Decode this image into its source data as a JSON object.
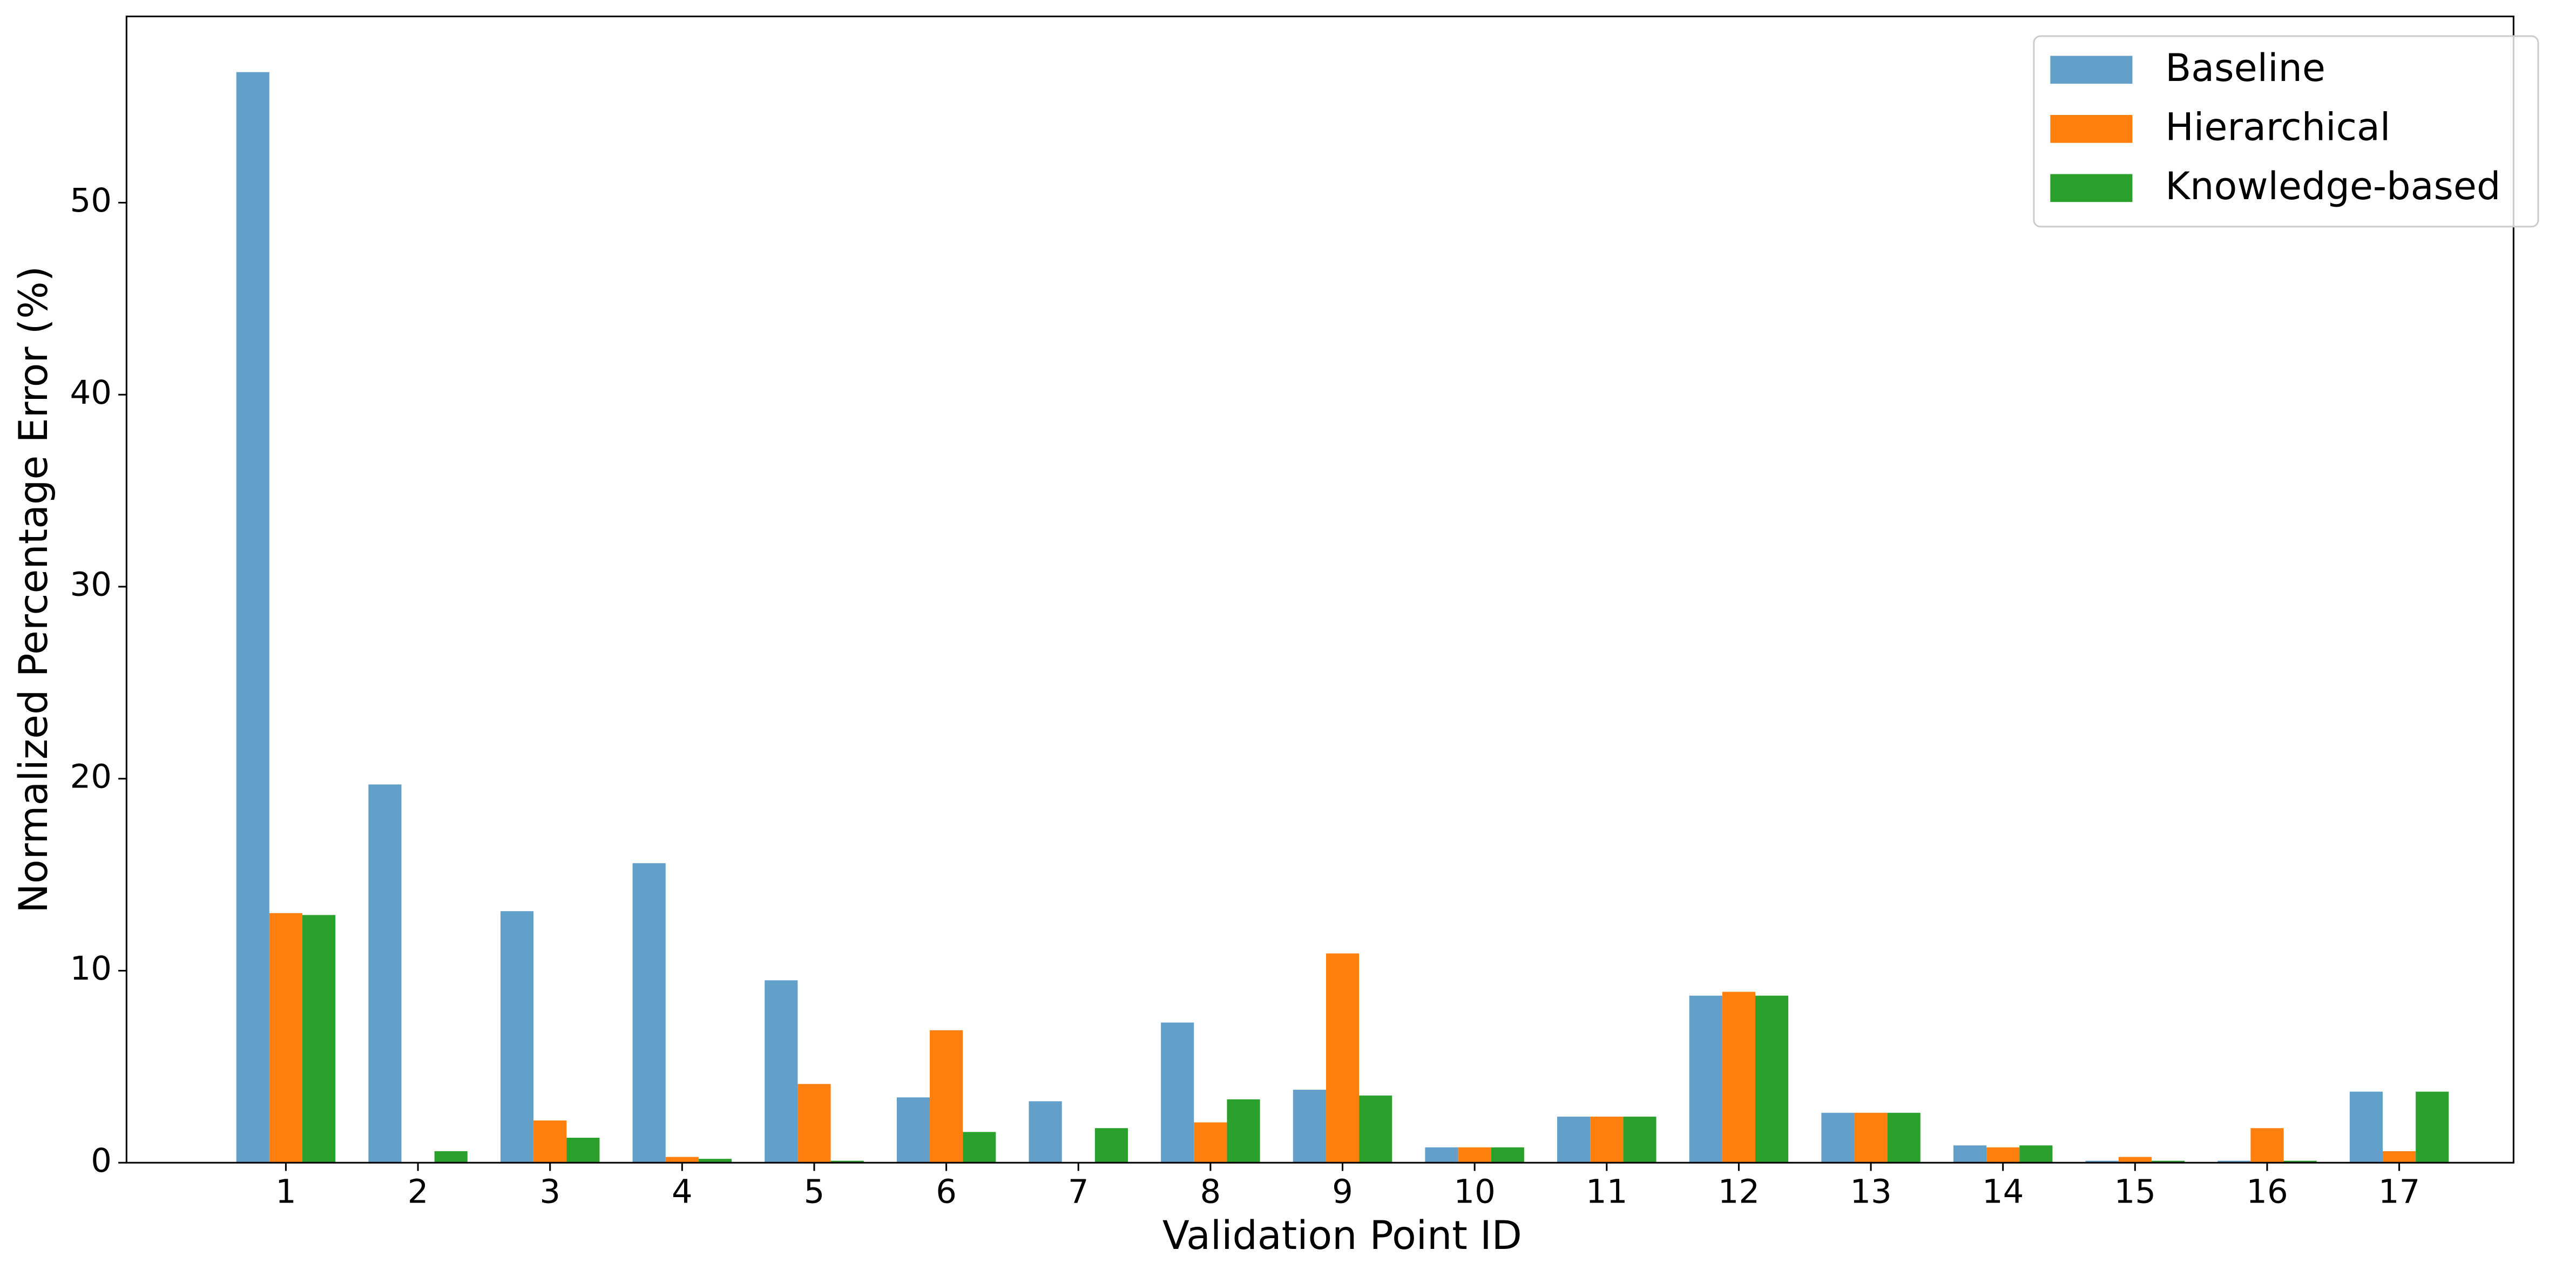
{
  "chart_data": {
    "type": "bar",
    "xlabel": "Validation Point ID",
    "ylabel": "Normalized Percentage Error (%)",
    "categories": [
      "1",
      "2",
      "3",
      "4",
      "5",
      "6",
      "7",
      "8",
      "9",
      "10",
      "11",
      "12",
      "13",
      "14",
      "15",
      "16",
      "17"
    ],
    "series": [
      {
        "name": "Baseline",
        "color": "#62a0ca",
        "values": [
          56.8,
          19.7,
          13.1,
          15.6,
          9.5,
          3.4,
          3.2,
          7.3,
          3.8,
          0.8,
          2.4,
          8.7,
          2.6,
          0.9,
          0.1,
          0.1,
          3.7
        ]
      },
      {
        "name": "Hierarchical",
        "color": "#ff7f0e",
        "values": [
          13.0,
          0,
          2.2,
          0.3,
          4.1,
          6.9,
          0,
          2.1,
          10.9,
          0.8,
          2.4,
          8.9,
          2.6,
          0.8,
          0.3,
          1.8,
          0.6
        ]
      },
      {
        "name": "Knowledge-based",
        "color": "#2ca02c",
        "values": [
          12.9,
          0.6,
          1.3,
          0.2,
          0.1,
          1.6,
          1.8,
          3.3,
          3.5,
          0.8,
          2.4,
          8.7,
          2.6,
          0.9,
          0.1,
          0.1,
          3.7
        ]
      }
    ],
    "ylim": [
      0,
      59.7
    ],
    "yticks": [
      0,
      10,
      20,
      30,
      40,
      50
    ],
    "legend": "upper right"
  }
}
